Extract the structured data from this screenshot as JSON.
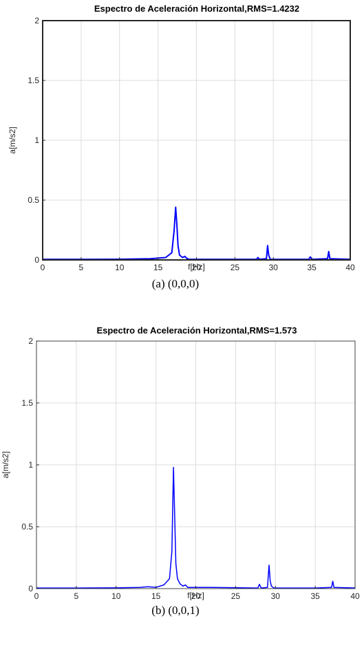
{
  "chart_data": [
    {
      "type": "line",
      "title": "Espectro de Aceleración Horizontal,RMS=1.4232",
      "xlabel": "f[Hz]",
      "ylabel": "a[m/s2]",
      "caption": "(a)   (0,0,0)",
      "xlim": [
        0,
        40
      ],
      "ylim": [
        0,
        2
      ],
      "xticks": [
        "0",
        "5",
        "10",
        "15",
        "20",
        "25",
        "30",
        "35",
        "40"
      ],
      "yticks": [
        "0",
        "0.5",
        "1",
        "1.5",
        "2"
      ],
      "grid": true,
      "color": "#0000ff",
      "series": [
        {
          "x": [
            0,
            5,
            10,
            14,
            16,
            16.8,
            17.1,
            17.3,
            17.45,
            17.6,
            17.8,
            18.2,
            18.5,
            18.7,
            19,
            22,
            27.8,
            28,
            28.2,
            29.1,
            29.25,
            29.4,
            29.6,
            34.6,
            34.8,
            35,
            37.05,
            37.2,
            37.35,
            40
          ],
          "y": [
            0.005,
            0.005,
            0.006,
            0.01,
            0.02,
            0.06,
            0.25,
            0.44,
            0.3,
            0.12,
            0.04,
            0.02,
            0.03,
            0.015,
            0.005,
            0.005,
            0.005,
            0.02,
            0.005,
            0.01,
            0.12,
            0.04,
            0.005,
            0.005,
            0.025,
            0.005,
            0.01,
            0.07,
            0.01,
            0.005
          ]
        }
      ]
    },
    {
      "type": "line",
      "title": "Espectro de Aceleración Horizontal,RMS=1.573",
      "xlabel": "f[Hz]",
      "ylabel": "a[m/s2]",
      "caption": "(b)   (0,0,1)",
      "xlim": [
        0,
        40
      ],
      "ylim": [
        0,
        2
      ],
      "xticks": [
        "0",
        "5",
        "10",
        "15",
        "20",
        "25",
        "30",
        "35",
        "40"
      ],
      "yticks": [
        "0",
        "0.5",
        "1",
        "1.5",
        "2"
      ],
      "grid": true,
      "color": "#0000ff",
      "series": [
        {
          "x": [
            0,
            5,
            10,
            13,
            14,
            15,
            16,
            16.7,
            17,
            17.2,
            17.35,
            17.5,
            17.7,
            18,
            18.4,
            18.7,
            19,
            22,
            27.8,
            28,
            28.2,
            29,
            29.2,
            29.35,
            29.5,
            29.8,
            35,
            37.05,
            37.2,
            37.35,
            40
          ],
          "y": [
            0.005,
            0.005,
            0.006,
            0.01,
            0.015,
            0.01,
            0.03,
            0.08,
            0.3,
            0.98,
            0.6,
            0.2,
            0.08,
            0.04,
            0.02,
            0.03,
            0.01,
            0.01,
            0.005,
            0.035,
            0.005,
            0.01,
            0.19,
            0.06,
            0.02,
            0.005,
            0.005,
            0.01,
            0.06,
            0.01,
            0.005
          ]
        }
      ]
    }
  ]
}
